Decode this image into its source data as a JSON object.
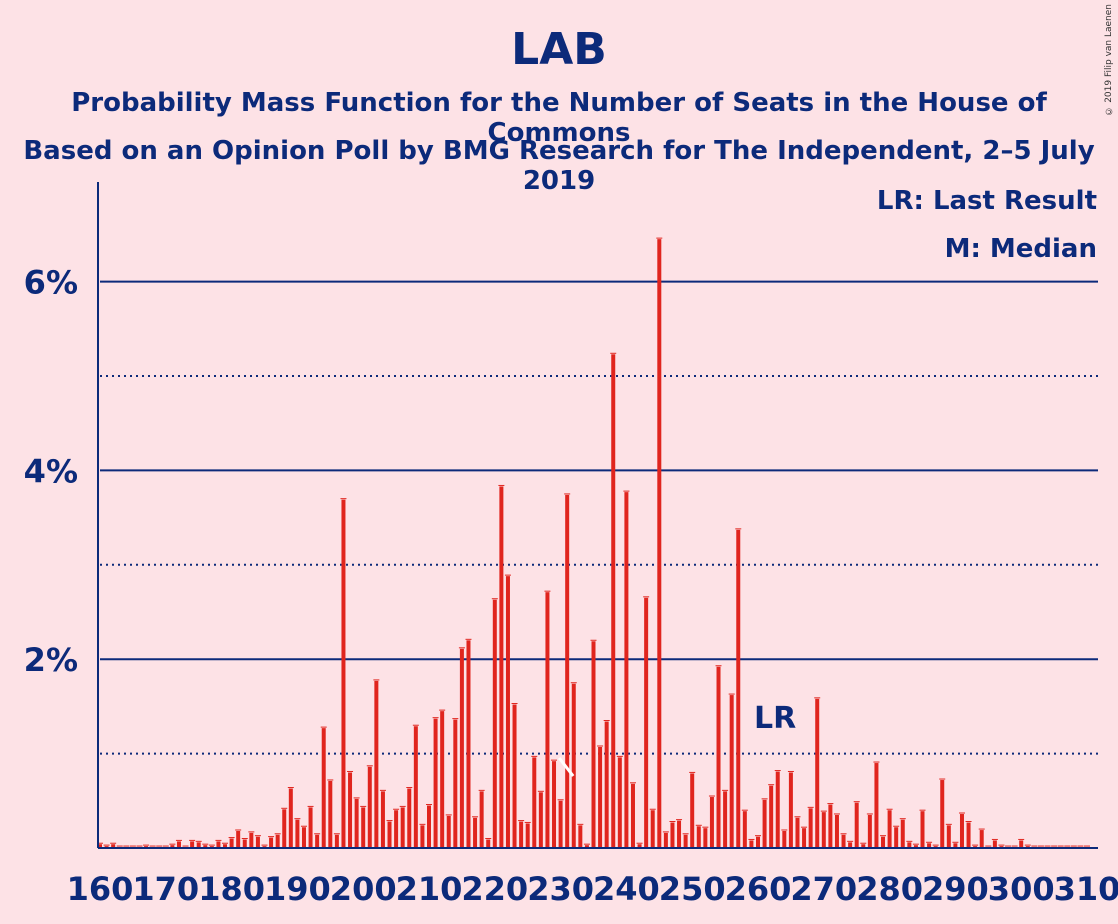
{
  "header": {
    "title": "LAB",
    "subtitle1": "Probability Mass Function for the Number of Seats in the House of Commons",
    "subtitle2": "Based on an Opinion Poll by BMG Research for The Independent, 2–5 July 2019",
    "copyright": "© 2019 Filip van Laenen"
  },
  "legend": {
    "last_result": "LR: Last Result",
    "median": "M: Median"
  },
  "colors": {
    "background": "#fde2e6",
    "bar": "#e0251e",
    "text": "#0c2a7a"
  },
  "chart_data": {
    "type": "bar",
    "title": "LAB",
    "xlabel": "",
    "ylabel": "",
    "xlim": [
      160,
      310
    ],
    "ylim": [
      0,
      7
    ],
    "y_major_ticks": [
      2,
      4,
      6
    ],
    "y_tick_labels": [
      "2%",
      "4%",
      "6%"
    ],
    "x_tick_labels": [
      "160",
      "170",
      "180",
      "190",
      "200",
      "210",
      "220",
      "230",
      "240",
      "250",
      "260",
      "270",
      "280",
      "290",
      "300",
      "310"
    ],
    "grid": "solid lines at 2%, 4%, 6%; dotted lines at 1%, 3%, 5%",
    "last_result": {
      "seats": 262,
      "label": "LR"
    },
    "median": {
      "seats": 231,
      "label": "M"
    },
    "x": [
      160,
      161,
      162,
      163,
      164,
      165,
      166,
      167,
      168,
      169,
      170,
      171,
      172,
      173,
      174,
      175,
      176,
      177,
      178,
      179,
      180,
      181,
      182,
      183,
      184,
      185,
      186,
      187,
      188,
      189,
      190,
      191,
      192,
      193,
      194,
      195,
      196,
      197,
      198,
      199,
      200,
      201,
      202,
      203,
      204,
      205,
      206,
      207,
      208,
      209,
      210,
      211,
      212,
      213,
      214,
      215,
      216,
      217,
      218,
      219,
      220,
      221,
      222,
      223,
      224,
      225,
      226,
      227,
      228,
      229,
      230,
      231,
      232,
      233,
      234,
      235,
      236,
      237,
      238,
      239,
      240,
      241,
      242,
      243,
      244,
      245,
      246,
      247,
      248,
      249,
      250,
      251,
      252,
      253,
      254,
      255,
      256,
      257,
      258,
      259,
      260,
      261,
      262,
      263,
      264,
      265,
      266,
      267,
      268,
      269,
      270,
      271,
      272,
      273,
      274,
      275,
      276,
      277,
      278,
      279,
      280,
      281,
      282,
      283,
      284,
      285,
      286,
      287,
      288,
      289,
      290,
      291,
      292,
      293,
      294,
      295,
      296,
      297,
      298,
      299,
      300,
      301,
      302,
      303,
      304,
      305,
      306,
      307,
      308,
      309,
      310
    ],
    "values": [
      0.04,
      0.02,
      0.04,
      0.01,
      0.01,
      0.01,
      0.01,
      0.02,
      0.01,
      0.01,
      0.01,
      0.03,
      0.07,
      0.01,
      0.07,
      0.06,
      0.03,
      0.02,
      0.07,
      0.04,
      0.1,
      0.18,
      0.09,
      0.16,
      0.12,
      0.02,
      0.11,
      0.14,
      0.41,
      0.63,
      0.3,
      0.22,
      0.43,
      0.14,
      1.27,
      0.71,
      0.14,
      3.69,
      0.8,
      0.52,
      0.43,
      0.86,
      1.77,
      0.6,
      0.28,
      0.4,
      0.43,
      0.63,
      1.29,
      0.24,
      0.45,
      1.37,
      1.45,
      0.34,
      1.36,
      2.11,
      2.2,
      0.32,
      0.6,
      0.09,
      2.63,
      3.83,
      2.88,
      1.52,
      0.28,
      0.26,
      0.96,
      0.59,
      2.71,
      0.92,
      0.5,
      3.74,
      1.74,
      0.24,
      0.03,
      2.19,
      1.07,
      1.34,
      5.23,
      0.96,
      3.77,
      0.68,
      0.04,
      2.65,
      0.4,
      6.45,
      0.16,
      0.27,
      0.29,
      0.14,
      0.79,
      0.23,
      0.21,
      0.54,
      1.92,
      0.6,
      1.62,
      3.37,
      0.39,
      0.08,
      0.12,
      0.51,
      0.66,
      0.81,
      0.18,
      0.8,
      0.32,
      0.21,
      0.42,
      1.58,
      0.38,
      0.46,
      0.35,
      0.14,
      0.06,
      0.48,
      0.04,
      0.35,
      0.9,
      0.12,
      0.4,
      0.22,
      0.3,
      0.06,
      0.03,
      0.39,
      0.05,
      0.02,
      0.72,
      0.24,
      0.05,
      0.36,
      0.27,
      0.02,
      0.19,
      0.01,
      0.08,
      0.02,
      0.01,
      0.01,
      0.08,
      0.02,
      0.01,
      0.01,
      0.01,
      0.01,
      0.01,
      0.01,
      0.01,
      0.01,
      0.01
    ]
  }
}
